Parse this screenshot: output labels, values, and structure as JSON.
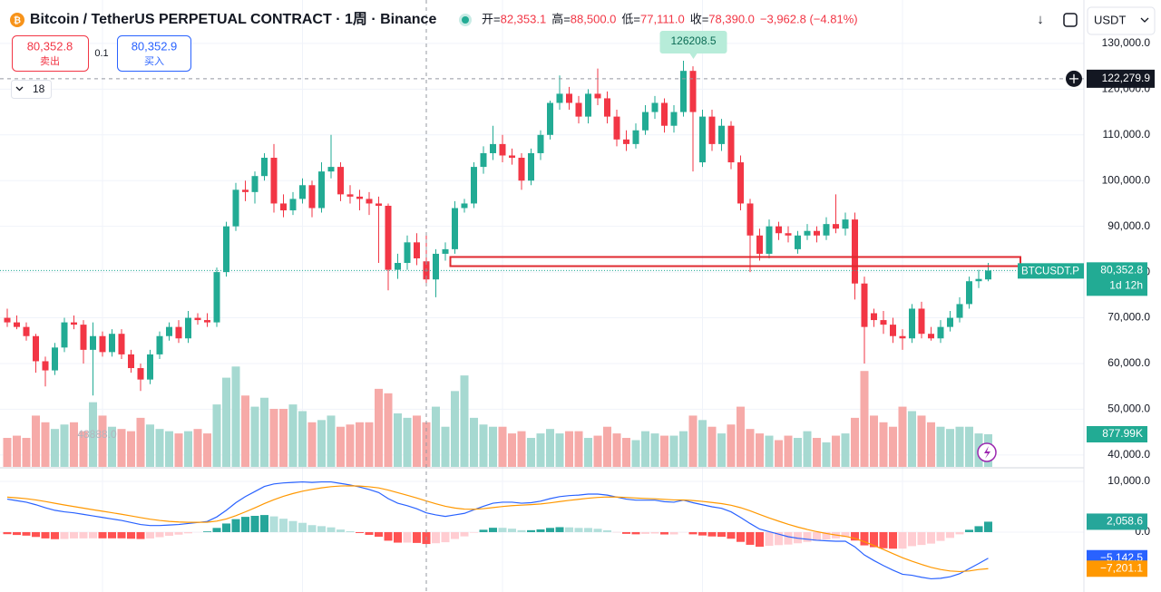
{
  "chart_data": {
    "type": "candlestick",
    "title": "Bitcoin / TetherUS PERPETUAL CONTRACT · 1周 · Binance",
    "header_fields": [
      {
        "key": "开=",
        "text": "82,353.1"
      },
      {
        "key": "高=",
        "text": "88,500.0"
      },
      {
        "key": "低=",
        "text": "77,111.0"
      },
      {
        "key": "收=",
        "text": "78,390.0"
      }
    ],
    "change": "−3,962.8 (−4.81%)",
    "currency": "USDT",
    "toolbar": {
      "sell_price": "80,352.8",
      "sell": "卖出",
      "quantity": "0.1",
      "buy_price": "80,352.9",
      "buy": "买入",
      "indicators": "18"
    },
    "up_color": "#22ab94",
    "down_color": "#f23645",
    "candles": {
      "open": [
        70000,
        69000,
        68000,
        66000,
        60500,
        58500,
        63500,
        69000,
        68500,
        63000,
        66000,
        62500,
        66500,
        62000,
        59000,
        56500,
        62000,
        66000,
        68000,
        65500,
        70000,
        69500,
        69000,
        80000,
        90000,
        98000,
        97500,
        101000,
        105000,
        95000,
        93500,
        96000,
        99000,
        94000,
        102000,
        103000,
        97000,
        96500,
        96000,
        95000,
        94500,
        80500,
        82000,
        86500,
        82353.1,
        78390,
        84000,
        85000,
        94000,
        95000,
        103000,
        106000,
        108000,
        105500,
        105000,
        100000,
        106000,
        110000,
        117000,
        119000,
        117000,
        114000,
        119000,
        118000,
        114000,
        109000,
        108000,
        111000,
        115000,
        117000,
        112000,
        115000,
        124000,
        104000,
        114000,
        108000,
        112000,
        104000,
        95000,
        88000,
        84000,
        90000,
        88500,
        85000,
        88000,
        89000,
        88000,
        90500,
        89500,
        91500,
        77500,
        71000,
        69500,
        68500,
        66000,
        65500,
        72000,
        66500,
        65500,
        68000,
        70000,
        73000,
        78000,
        78390
      ],
      "high": [
        72000,
        70500,
        69000,
        66500,
        61500,
        64500,
        70000,
        70500,
        69500,
        69000,
        67000,
        67500,
        67500,
        63000,
        60000,
        63000,
        67000,
        69000,
        69500,
        71500,
        71000,
        71000,
        81000,
        91000,
        99500,
        100000,
        102000,
        106000,
        108000,
        97000,
        97500,
        100500,
        100000,
        104000,
        110000,
        104000,
        99000,
        98000,
        97500,
        96500,
        95000,
        84000,
        88000,
        88500,
        88500,
        85000,
        86500,
        95500,
        96000,
        104000,
        107500,
        112000,
        110000,
        107000,
        106000,
        107000,
        111000,
        117500,
        123000,
        120500,
        118500,
        120000,
        124500,
        119500,
        115500,
        111000,
        112500,
        116500,
        118500,
        118000,
        116500,
        126208.5,
        125000,
        115500,
        115500,
        113500,
        113000,
        105500,
        96000,
        89500,
        91500,
        91000,
        90000,
        89000,
        90500,
        90000,
        92000,
        97000,
        93000,
        93000,
        79000,
        72000,
        71500,
        70000,
        67500,
        73000,
        73500,
        68000,
        69500,
        71500,
        74500,
        79000,
        80500,
        82000
      ],
      "low": [
        68000,
        67500,
        65000,
        58000,
        55000,
        57500,
        62500,
        67500,
        60000,
        53000,
        61500,
        61500,
        61000,
        58000,
        54000,
        55500,
        61000,
        65000,
        64500,
        64500,
        68500,
        68000,
        68000,
        79000,
        89000,
        95500,
        95000,
        100000,
        93000,
        92000,
        92500,
        95000,
        92000,
        93000,
        100500,
        95500,
        95000,
        93500,
        92500,
        82000,
        76000,
        78500,
        80500,
        81500,
        77111,
        74500,
        82500,
        84000,
        93000,
        94000,
        101500,
        104500,
        104000,
        103500,
        98000,
        99000,
        104500,
        109000,
        115500,
        115500,
        112500,
        112500,
        116500,
        112500,
        107500,
        106500,
        107000,
        110000,
        113500,
        110500,
        110500,
        114000,
        102000,
        103000,
        106500,
        106500,
        102500,
        93500,
        80000,
        82500,
        83000,
        87000,
        86500,
        84000,
        87000,
        86500,
        87000,
        88500,
        88000,
        74000,
        60000,
        68000,
        66500,
        64500,
        63000,
        64500,
        65500,
        65000,
        64500,
        67000,
        69000,
        72000,
        76500,
        78000
      ],
      "close": [
        69000,
        68000,
        66000,
        60500,
        58500,
        63500,
        69000,
        68500,
        63000,
        66000,
        62500,
        66500,
        62000,
        59000,
        56500,
        62000,
        66000,
        68000,
        65500,
        70000,
        69500,
        69000,
        80000,
        90000,
        98000,
        97500,
        101000,
        105000,
        95000,
        93500,
        96000,
        99000,
        94000,
        102000,
        103000,
        97000,
        96500,
        96000,
        95000,
        94500,
        80500,
        82000,
        86500,
        83000,
        78390,
        84000,
        85000,
        94000,
        95000,
        103000,
        106000,
        108000,
        105500,
        105000,
        100000,
        106000,
        110000,
        117000,
        119000,
        117000,
        114000,
        119000,
        118000,
        114000,
        109000,
        108000,
        111000,
        115000,
        117000,
        112000,
        115000,
        124000,
        115000,
        114000,
        108000,
        112000,
        104000,
        95000,
        88000,
        84000,
        90000,
        88500,
        88000,
        88000,
        89000,
        88000,
        90500,
        89500,
        91500,
        77500,
        68000,
        69500,
        68500,
        66000,
        65500,
        72000,
        66500,
        65500,
        68000,
        70000,
        73000,
        78000,
        78500,
        80352.8
      ]
    },
    "ylim": [
      37000,
      139500
    ],
    "yticks": [
      {
        "value": 130000,
        "label": "130,000.0"
      },
      {
        "value": 120000,
        "label": "120,000.0"
      },
      {
        "value": 110000,
        "label": "110,000.0"
      },
      {
        "value": 100000,
        "label": "100,000.0"
      },
      {
        "value": 90000,
        "label": "90,000.0"
      },
      {
        "value": 80000,
        "label": "80,000.0"
      },
      {
        "value": 70000,
        "label": "70,000.0"
      },
      {
        "value": 60000,
        "label": "60,000.0"
      },
      {
        "value": 50000,
        "label": "50,000.0"
      },
      {
        "value": 40000,
        "label": "40,000.0"
      }
    ],
    "grid": true,
    "price_tag": {
      "symbol": "BTCUSDT.P",
      "label": "80,352.8",
      "countdown": "1d 12h"
    },
    "crosshair": {
      "candle": 44,
      "price": {
        "value": 122279.9,
        "label": "122,279.9"
      }
    },
    "zone": {
      "start": 47,
      "low": 81300,
      "high": 83300,
      "color": "#e0292f"
    },
    "annotations": [
      "48888.0"
    ],
    "volume": {
      "up_color": "#a6d9d1",
      "down_color": "#f6aaa8",
      "values": [
        780,
        840,
        780,
        1380,
        1200,
        1020,
        1140,
        1200,
        960,
        1740,
        1380,
        1080,
        1020,
        960,
        1320,
        1140,
        1020,
        960,
        900,
        960,
        1020,
        900,
        1680,
        2400,
        2700,
        1920,
        1620,
        1860,
        1560,
        1560,
        1680,
        1500,
        1200,
        1260,
        1380,
        1080,
        1140,
        1200,
        1200,
        2100,
        1980,
        1440,
        1320,
        1380,
        1200,
        1620,
        1080,
        2040,
        2460,
        1320,
        1140,
        1080,
        1080,
        900,
        960,
        780,
        900,
        1020,
        900,
        960,
        960,
        780,
        840,
        1080,
        900,
        780,
        720,
        960,
        900,
        840,
        840,
        960,
        1380,
        1260,
        1080,
        900,
        1140,
        1620,
        1020,
        900,
        840,
        720,
        840,
        780,
        960,
        780,
        660,
        840,
        900,
        1320,
        2580,
        1380,
        1200,
        1080,
        1620,
        1500,
        1380,
        1200,
        1080,
        1020,
        1080,
        1080,
        900,
        877.99
      ],
      "value_label": "877.99K"
    },
    "macd_lim": [
      -11800,
      12500
    ],
    "macd_ticks": [
      {
        "value": 10000,
        "label": "10,000.0"
      },
      {
        "value": 0,
        "label": "0.0"
      }
    ],
    "macd_line": {
      "color": "#2962ff",
      "value_label": "−5,142.5",
      "values": [
        6500,
        6200,
        5900,
        5400,
        4800,
        4300,
        4000,
        3800,
        3500,
        3200,
        2900,
        2600,
        2300,
        1900,
        1500,
        1300,
        1300,
        1400,
        1500,
        1700,
        1900,
        2100,
        3000,
        4300,
        5800,
        7000,
        8000,
        9000,
        9500,
        9700,
        9800,
        9900,
        9800,
        9900,
        9900,
        9600,
        9300,
        8900,
        8400,
        7800,
        6600,
        5700,
        5200,
        4600,
        3800,
        3400,
        3100,
        3400,
        3700,
        4400,
        5100,
        5700,
        5900,
        5900,
        5700,
        5800,
        6100,
        6600,
        7000,
        7200,
        7300,
        7500,
        7500,
        7300,
        6900,
        6500,
        6300,
        6300,
        6300,
        6000,
        5900,
        6300,
        5800,
        5400,
        5000,
        4700,
        4000,
        2900,
        1700,
        600,
        100,
        -400,
        -900,
        -1200,
        -1400,
        -1600,
        -1700,
        -1800,
        -1800,
        -2900,
        -4500,
        -5600,
        -6600,
        -7500,
        -8300,
        -8500,
        -8900,
        -9200,
        -9100,
        -8800,
        -8200,
        -7200,
        -6200,
        -5142.5
      ]
    },
    "signal_line": {
      "color": "#ff9800",
      "value_label": "−7,201.1",
      "values": [
        6900,
        6760,
        6590,
        6350,
        6040,
        5690,
        5350,
        5040,
        4730,
        4420,
        4120,
        3820,
        3520,
        3200,
        2860,
        2550,
        2300,
        2120,
        2000,
        1940,
        1930,
        1960,
        2170,
        2600,
        3240,
        3990,
        4790,
        5630,
        6400,
        7060,
        7610,
        8070,
        8420,
        8720,
        8960,
        9090,
        9130,
        9080,
        8940,
        8710,
        8290,
        7770,
        7260,
        6730,
        6140,
        5590,
        5090,
        4750,
        4540,
        4510,
        4630,
        4840,
        5050,
        5220,
        5320,
        5420,
        5560,
        5770,
        6020,
        6260,
        6470,
        6680,
        6840,
        6930,
        6920,
        6840,
        6730,
        6640,
        6570,
        6460,
        6350,
        6340,
        6230,
        6060,
        5850,
        5620,
        5300,
        4820,
        4200,
        3480,
        2800,
        2160,
        1550,
        1000,
        520,
        100,
        -260,
        -570,
        -820,
        -1240,
        -1890,
        -2630,
        -3420,
        -4240,
        -5050,
        -5740,
        -6370,
        -6940,
        -7370,
        -7660,
        -7770,
        -7660,
        -7370,
        -7201.1
      ]
    },
    "histogram": {
      "colors": {
        "up_rising": "#26a69a",
        "up_falling": "#b2dfdb",
        "down_falling": "#ff5252",
        "down_rising": "#ffcdd2"
      },
      "value_label": "2,058.6",
      "values": [
        -400,
        -560,
        -690,
        -950,
        -1240,
        -1390,
        -1350,
        -1240,
        -1230,
        -1220,
        -1220,
        -1220,
        -1220,
        -1300,
        -1360,
        -1250,
        -1000,
        -720,
        -500,
        -240,
        -30,
        140,
        830,
        1700,
        2560,
        3010,
        3210,
        3370,
        3100,
        2640,
        2190,
        1830,
        1380,
        1180,
        940,
        510,
        170,
        -180,
        -540,
        -910,
        -1690,
        -2070,
        -2060,
        -2130,
        -2340,
        -2190,
        -1990,
        -1350,
        -840,
        -110,
        470,
        860,
        850,
        680,
        380,
        380,
        540,
        830,
        980,
        940,
        830,
        820,
        660,
        370,
        -20,
        -340,
        -430,
        -340,
        -270,
        -460,
        -450,
        -40,
        -430,
        -660,
        -850,
        -920,
        -1300,
        -1920,
        -2500,
        -2880,
        -2700,
        -2560,
        -2450,
        -2200,
        -1920,
        -1700,
        -1440,
        -1230,
        -980,
        -1660,
        -2610,
        -2970,
        -3180,
        -3260,
        -3250,
        -2760,
        -2530,
        -2260,
        -1730,
        -1140,
        -430,
        460,
        1170,
        2058.6
      ]
    }
  }
}
